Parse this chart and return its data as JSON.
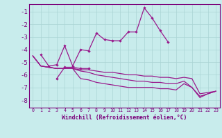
{
  "xlabel": "Windchill (Refroidissement éolien,°C)",
  "background_color": "#c8ecec",
  "grid_color": "#aad4d4",
  "line_color": "#991a8c",
  "spine_color": "#7a007a",
  "xlim": [
    -0.5,
    23.5
  ],
  "ylim": [
    -8.6,
    -0.4
  ],
  "xticks": [
    0,
    1,
    2,
    3,
    4,
    5,
    6,
    7,
    8,
    9,
    10,
    11,
    12,
    13,
    14,
    15,
    16,
    17,
    18,
    19,
    20,
    21,
    22,
    23
  ],
  "yticks": [
    -1,
    -2,
    -3,
    -4,
    -5,
    -6,
    -7,
    -8
  ],
  "series_upper": [
    null,
    -4.4,
    -5.3,
    -5.2,
    -3.7,
    -5.3,
    -4.0,
    -4.1,
    -2.7,
    -3.2,
    -3.3,
    -3.3,
    -2.6,
    -2.6,
    -0.7,
    -1.5,
    -2.5,
    -3.4,
    null,
    null,
    null,
    null,
    null,
    null
  ],
  "series_mid_short": [
    null,
    null,
    null,
    -6.3,
    -5.4,
    -5.4,
    -5.5,
    -5.5,
    null,
    null,
    null,
    null,
    null,
    null,
    null,
    null,
    null,
    null,
    null,
    null,
    null,
    null,
    null,
    null
  ],
  "series_top": [
    -4.5,
    -5.3,
    -5.4,
    -5.5,
    -5.5,
    -5.5,
    -5.6,
    -5.6,
    -5.7,
    -5.8,
    -5.8,
    -5.9,
    -6.0,
    -6.0,
    -6.1,
    -6.1,
    -6.2,
    -6.2,
    -6.3,
    -6.2,
    -6.3,
    -7.5,
    -7.4,
    -7.3
  ],
  "series_mid": [
    -4.5,
    -5.3,
    -5.4,
    -5.5,
    -5.5,
    -5.5,
    -5.7,
    -5.8,
    -6.0,
    -6.1,
    -6.2,
    -6.3,
    -6.4,
    -6.5,
    -6.5,
    -6.6,
    -6.6,
    -6.7,
    -6.7,
    -6.5,
    -7.0,
    -7.7,
    -7.5,
    -7.3
  ],
  "series_bot": [
    -4.5,
    -5.3,
    -5.4,
    -5.5,
    -5.5,
    -5.5,
    -6.3,
    -6.4,
    -6.6,
    -6.7,
    -6.8,
    -6.9,
    -7.0,
    -7.0,
    -7.0,
    -7.0,
    -7.1,
    -7.1,
    -7.2,
    -6.7,
    -7.0,
    -7.8,
    -7.5,
    -7.3
  ]
}
